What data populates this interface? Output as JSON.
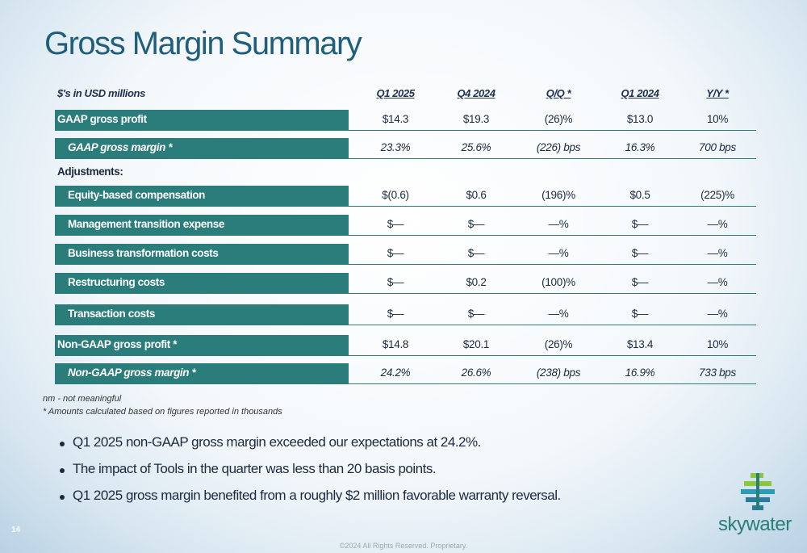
{
  "title": "Gross Margin Summary",
  "table": {
    "unit_label": "$'s in USD millions",
    "columns": [
      "Q1 2025",
      "Q4 2024",
      "Q/Q *",
      "Q1 2024",
      "Y/Y *"
    ],
    "rows": [
      {
        "label": "GAAP gross profit",
        "values": [
          "$14.3",
          "$19.3",
          "(26)%",
          "$13.0",
          "10%"
        ]
      },
      {
        "label": "GAAP gross margin *",
        "values": [
          "23.3%",
          "25.6%",
          "(226) bps",
          "16.3%",
          "700 bps"
        ]
      },
      {
        "label": "Adjustments:"
      },
      {
        "label": "Equity-based compensation",
        "values": [
          "$(0.6)",
          "$0.6",
          "(196)%",
          "$0.5",
          "(225)%"
        ]
      },
      {
        "label": "Management transition expense",
        "values": [
          "$—",
          "$—",
          "—%",
          "$—",
          "—%"
        ]
      },
      {
        "label": "Business transformation costs",
        "values": [
          "$—",
          "$—",
          "—%",
          "$—",
          "—%"
        ]
      },
      {
        "label": "Restructuring costs",
        "values": [
          "$—",
          "$0.2",
          "(100)%",
          "$—",
          "—%"
        ]
      },
      {
        "label": "Transaction costs",
        "values": [
          "$—",
          "$—",
          "—%",
          "$—",
          "—%"
        ]
      },
      {
        "label": "Non-GAAP gross profit *",
        "values": [
          "$14.8",
          "$20.1",
          "(26)%",
          "$13.4",
          "10%"
        ]
      },
      {
        "label": "Non-GAAP gross margin *",
        "values": [
          "24.2%",
          "26.6%",
          "(238) bps",
          "16.9%",
          "733 bps"
        ]
      }
    ]
  },
  "footnotes": [
    "nm - not meaningful",
    "* Amounts calculated based on figures reported in thousands"
  ],
  "bullets": [
    "Q1 2025 non-GAAP gross margin exceeded our expectations at 24.2%.",
    "The impact of Tools in the quarter was less than 20 basis points.",
    "Q1 2025 gross margin benefited from a roughly $2 million favorable warranty reversal."
  ],
  "page_number": "14",
  "logo_text": "skywater",
  "copyright": "©2024 All Rights Reserved. Proprietary."
}
